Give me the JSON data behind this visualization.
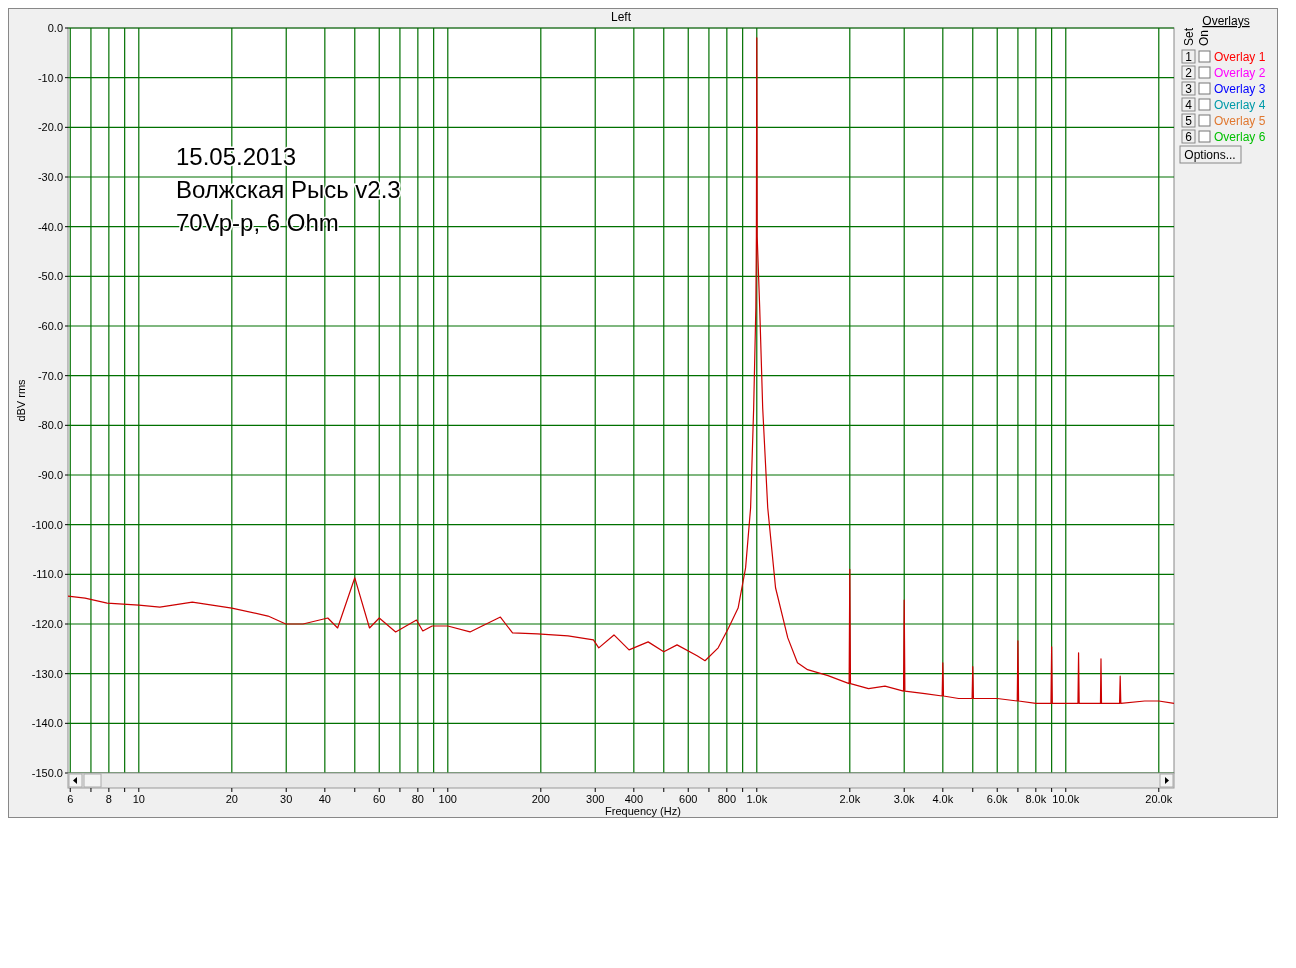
{
  "chart_data": {
    "type": "line",
    "title": "Left",
    "xlabel": "Frequency (Hz)",
    "ylabel": "dBV rms",
    "log": "x",
    "grid": true,
    "line_style": "solid",
    "annotations": [
      "15.05.2013",
      "Волжская Рысь v2.3",
      "70Vp-p, 6 Ohm",
      "Overlays",
      "Set",
      "On",
      "1",
      "2",
      "3",
      "4",
      "5",
      "6",
      "Overlay 1",
      "Overlay 2",
      "Overlay 3",
      "Overlay 4",
      "Overlay 5",
      "Overlay 6",
      "Options..."
    ],
    "xlim": [
      5.9,
      22400
    ],
    "ylim": [
      -150,
      0
    ],
    "xticks": [
      6,
      {
        "value": 7,
        "label": null
      },
      8,
      {
        "value": 9,
        "label": null
      },
      10,
      20,
      30,
      40,
      {
        "value": 50,
        "label": null
      },
      60,
      {
        "value": 70,
        "label": null
      },
      80,
      {
        "value": 90,
        "label": null
      },
      100,
      200,
      300,
      400,
      {
        "value": 500,
        "label": null
      },
      600,
      {
        "value": 700,
        "label": null
      },
      800,
      {
        "value": 900,
        "label": null
      },
      {
        "value": 1000,
        "label": "1.0k"
      },
      {
        "value": 2000,
        "label": "2.0k"
      },
      {
        "value": 3000,
        "label": "3.0k"
      },
      {
        "value": 4000,
        "label": "4.0k"
      },
      {
        "value": 5000,
        "label": null
      },
      {
        "value": 6000,
        "label": "6.0k"
      },
      {
        "value": 7000,
        "label": null
      },
      {
        "value": 8000,
        "label": "8.0k"
      },
      {
        "value": 9000,
        "label": null
      },
      {
        "value": 10000,
        "label": "10.0k"
      },
      {
        "value": 20000,
        "label": "20.0k"
      }
    ],
    "yticks": [
      {
        "value": 0,
        "label": "0.0"
      },
      {
        "value": -10,
        "label": "-10.0"
      },
      {
        "value": -20,
        "label": "-20.0"
      },
      {
        "value": -30,
        "label": "-30.0"
      },
      {
        "value": -40,
        "label": "-40.0"
      },
      {
        "value": -50,
        "label": "-50.0"
      },
      {
        "value": -60,
        "label": "-60.0"
      },
      {
        "value": -70,
        "label": "-70.0"
      },
      {
        "value": -80,
        "label": "-80.0"
      },
      {
        "value": -90,
        "label": "-90.0"
      },
      {
        "value": -100,
        "label": "-100.0"
      },
      {
        "value": -110,
        "label": "-110.0"
      },
      {
        "value": -120,
        "label": "-120.0"
      },
      {
        "value": -130,
        "label": "-130.0"
      },
      {
        "value": -140,
        "label": "-140.0"
      },
      {
        "value": -150,
        "label": "-150.0"
      }
    ],
    "series": [
      {
        "color": "#cc0000",
        "x": [
          5.9,
          6.7,
          7.9,
          10,
          11.7,
          14.9,
          20,
          26.2,
          29.9,
          34,
          40.9,
          44,
          50,
          55.8,
          60,
          67.8,
          79.2,
          83,
          89,
          100,
          118,
          148,
          162,
          195,
          245,
          296,
          308,
          345,
          386,
          445,
          500,
          552,
          641,
          680,
          750,
          810,
          870,
          920,
          955,
          977,
          993,
          997,
          1000,
          1003,
          1022,
          1045,
          1085,
          1150,
          1260,
          1354,
          1460,
          1700,
          1990,
          2000,
          2010,
          2300,
          2600,
          2985,
          3000,
          3015,
          3500,
          3980,
          4000,
          4020,
          4500,
          4975,
          5000,
          5025,
          6000,
          6965,
          7000,
          7035,
          8000,
          8955,
          9000,
          9045,
          10000,
          10950,
          11000,
          11050,
          12950,
          13000,
          13050,
          14930,
          15000,
          15070,
          18000,
          20000,
          22400
        ],
        "values": [
          -114.4,
          -114.8,
          -115.8,
          -116.2,
          -116.6,
          -115.6,
          -116.8,
          -118.4,
          -120,
          -120,
          -118.8,
          -120.8,
          -110.7,
          -120.8,
          -118.8,
          -121.6,
          -119.2,
          -121.4,
          -120.4,
          -120.4,
          -121.6,
          -118.6,
          -121.8,
          -122,
          -122.4,
          -123.2,
          -124.8,
          -122.2,
          -125.2,
          -123.6,
          -125.6,
          -124.2,
          -126.4,
          -127.4,
          -124.8,
          -120.8,
          -116.8,
          -108.7,
          -96.6,
          -76.5,
          -56.4,
          -42,
          -2,
          -42,
          -56.4,
          -76.5,
          -96.6,
          -112.7,
          -122.8,
          -127.8,
          -129.2,
          -130.4,
          -132,
          -109,
          -132,
          -133,
          -132.5,
          -133.5,
          -115.2,
          -133.5,
          -134,
          -134.5,
          -127.8,
          -134.5,
          -135,
          -135,
          -128.6,
          -135,
          -135,
          -135.5,
          -123.4,
          -135.5,
          -136,
          -136,
          -124.6,
          -136,
          -136,
          -136,
          -125.8,
          -136,
          -136,
          -127,
          -136,
          -136,
          -130.5,
          -136,
          -135.5,
          -135.5,
          -136
        ]
      }
    ]
  }
}
